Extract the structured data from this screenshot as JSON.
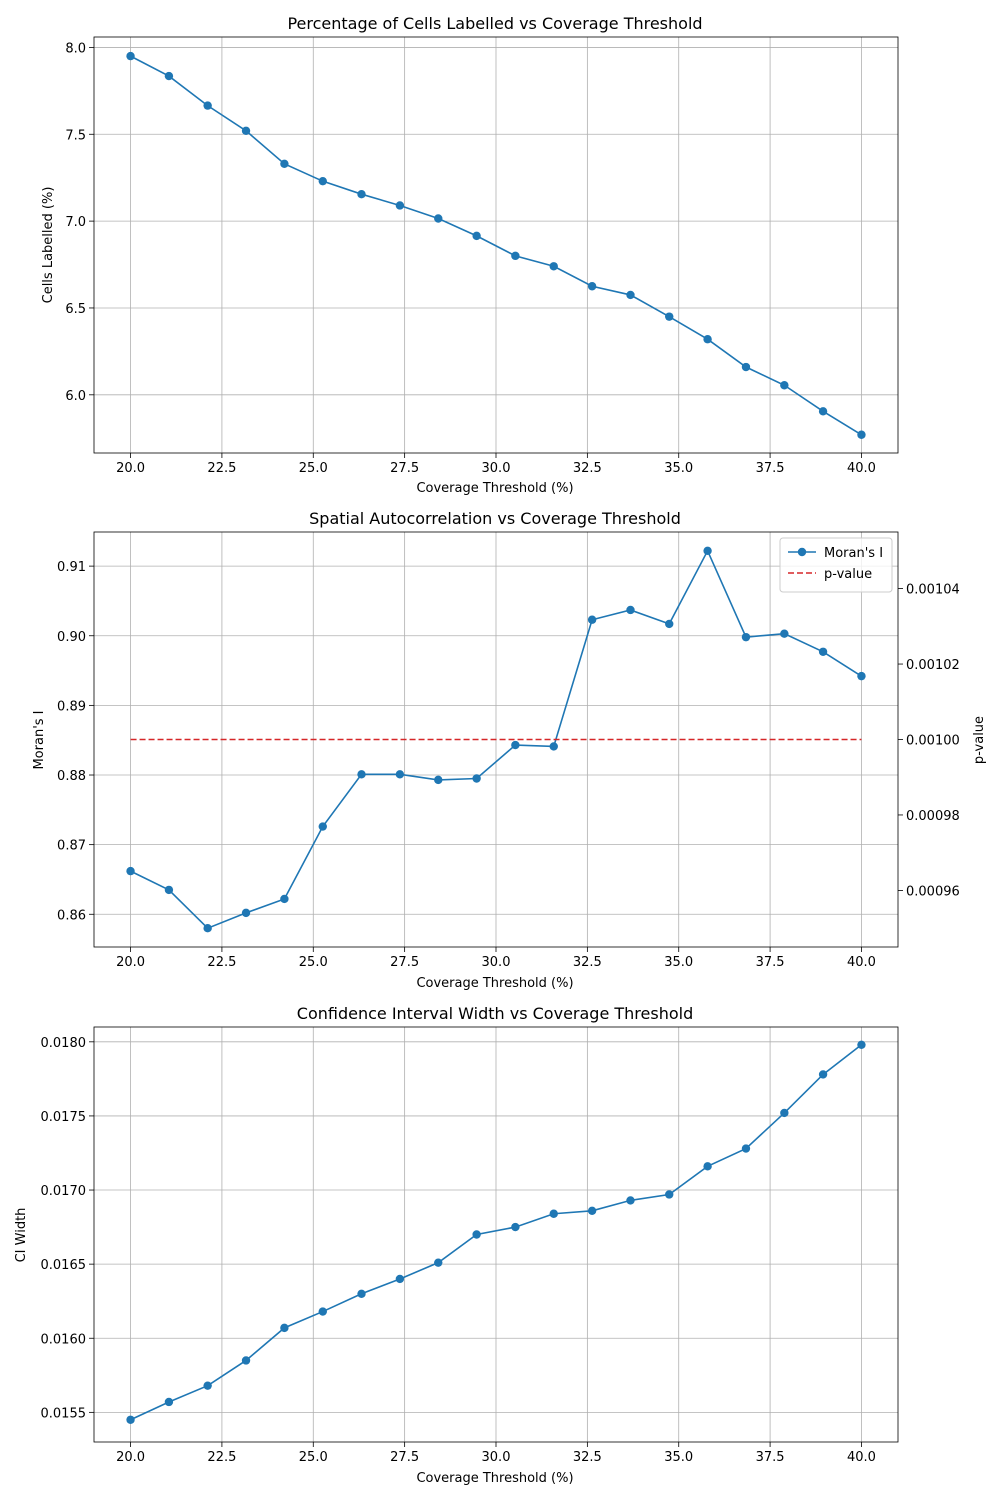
{
  "chart_data": [
    {
      "type": "line",
      "title": "Percentage of Cells Labelled vs Coverage Threshold",
      "xlabel": "Coverage Threshold (%)",
      "ylabel": "Cells Labelled (%)",
      "xlim": [
        19.0,
        41.0
      ],
      "ylim": [
        5.665,
        8.06
      ],
      "xticks": [
        "20.0",
        "22.5",
        "25.0",
        "27.5",
        "30.0",
        "32.5",
        "35.0",
        "37.5",
        "40.0"
      ],
      "yticks": [
        "6.0",
        "6.5",
        "7.0",
        "7.5",
        "8.0"
      ],
      "grid": true,
      "x": [
        20.0,
        21.05,
        22.11,
        23.16,
        24.21,
        25.26,
        26.32,
        27.37,
        28.42,
        29.47,
        30.53,
        31.58,
        32.63,
        33.68,
        34.74,
        35.79,
        36.84,
        37.89,
        38.95,
        40.0
      ],
      "series": [
        {
          "color": "#1f77b4",
          "marker": "circle",
          "values": [
            7.95,
            7.835,
            7.665,
            7.52,
            7.33,
            7.23,
            7.155,
            7.09,
            7.015,
            6.915,
            6.8,
            6.74,
            6.625,
            6.575,
            6.45,
            6.32,
            6.16,
            6.055,
            5.905,
            5.77
          ]
        }
      ]
    },
    {
      "type": "line",
      "title": "Spatial Autocorrelation vs Coverage Threshold",
      "xlabel": "Coverage Threshold (%)",
      "ylabel": "Moran's I",
      "y2label": "p-value",
      "xlim": [
        19.0,
        41.0
      ],
      "ylim": [
        0.8553,
        0.9149
      ],
      "y2lim": [
        0.000945,
        0.001055
      ],
      "xticks": [
        "20.0",
        "22.5",
        "25.0",
        "27.5",
        "30.0",
        "32.5",
        "35.0",
        "37.5",
        "40.0"
      ],
      "yticks": [
        "0.86",
        "0.87",
        "0.88",
        "0.89",
        "0.90",
        "0.91"
      ],
      "y2ticks": [
        "0.00096",
        "0.00098",
        "0.00100",
        "0.00102",
        "0.00104"
      ],
      "grid": true,
      "legend": "top-right",
      "x": [
        20.0,
        21.05,
        22.11,
        23.16,
        24.21,
        25.26,
        26.32,
        27.37,
        28.42,
        29.47,
        30.53,
        31.58,
        32.63,
        33.68,
        34.74,
        35.79,
        36.84,
        37.89,
        38.95,
        40.0
      ],
      "series": [
        {
          "name": "Moran's I",
          "axis": "left",
          "color": "#1f77b4",
          "marker": "circle",
          "values": [
            0.8662,
            0.8635,
            0.858,
            0.8602,
            0.8622,
            0.8726,
            0.8801,
            0.8801,
            0.8793,
            0.8795,
            0.8843,
            0.8841,
            0.9023,
            0.9037,
            0.9017,
            0.9122,
            0.8998,
            0.9003,
            0.8977,
            0.8942
          ]
        },
        {
          "name": "p-value",
          "axis": "right",
          "color": "#d62728",
          "style": "dashed",
          "values": [
            0.001,
            0.001,
            0.001,
            0.001,
            0.001,
            0.001,
            0.001,
            0.001,
            0.001,
            0.001,
            0.001,
            0.001,
            0.001,
            0.001,
            0.001,
            0.001,
            0.001,
            0.001,
            0.001,
            0.001
          ]
        }
      ]
    },
    {
      "type": "line",
      "title": "Confidence Interval Width vs Coverage Threshold",
      "xlabel": "Coverage Threshold (%)",
      "ylabel": "CI Width",
      "xlim": [
        19.0,
        41.0
      ],
      "ylim": [
        0.0153,
        0.0181
      ],
      "xticks": [
        "20.0",
        "22.5",
        "25.0",
        "27.5",
        "30.0",
        "32.5",
        "35.0",
        "37.5",
        "40.0"
      ],
      "yticks": [
        "0.0155",
        "0.0160",
        "0.0165",
        "0.0170",
        "0.0175",
        "0.0180"
      ],
      "grid": true,
      "x": [
        20.0,
        21.05,
        22.11,
        23.16,
        24.21,
        25.26,
        26.32,
        27.37,
        28.42,
        29.47,
        30.53,
        31.58,
        32.63,
        33.68,
        34.74,
        35.79,
        36.84,
        37.89,
        38.95,
        40.0
      ],
      "series": [
        {
          "color": "#1f77b4",
          "marker": "circle",
          "values": [
            0.01545,
            0.01557,
            0.01568,
            0.01585,
            0.01607,
            0.01618,
            0.0163,
            0.0164,
            0.01651,
            0.0167,
            0.01675,
            0.01684,
            0.01686,
            0.01693,
            0.01697,
            0.01716,
            0.01728,
            0.01752,
            0.01778,
            0.01798
          ]
        }
      ]
    }
  ]
}
